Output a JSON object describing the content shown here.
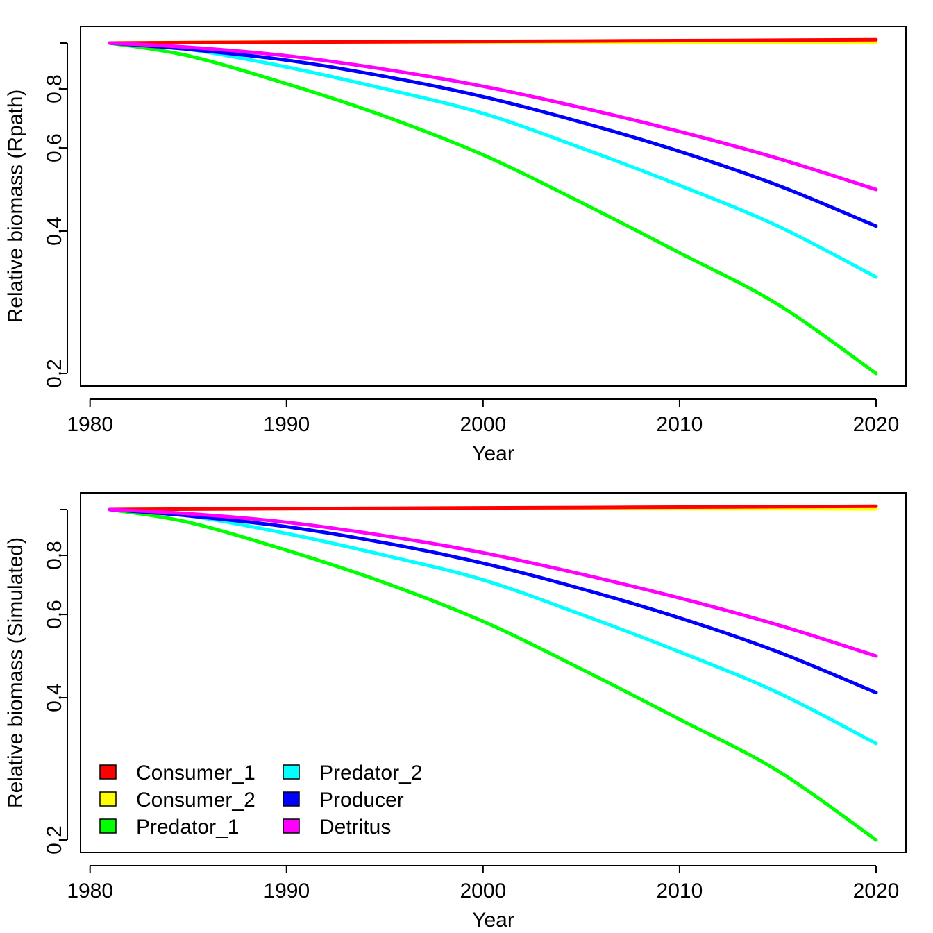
{
  "chart_data": [
    {
      "type": "line",
      "title": "",
      "xlabel": "Year",
      "ylabel": "Relative biomass (Rpath)",
      "xlim": [
        1981,
        2020
      ],
      "ylim": [
        0.2,
        1.0
      ],
      "y_scale": "log",
      "xticks": [
        1980,
        1990,
        2000,
        2010,
        2020
      ],
      "yticks": [
        0.2,
        0.4,
        0.6,
        0.8
      ],
      "grid": false,
      "legend": null,
      "x": [
        1981,
        1985,
        1990,
        1995,
        2000,
        2005,
        2010,
        2015,
        2020
      ],
      "series": [
        {
          "color": "#ff0000",
          "values": [
            1.0,
            1.002,
            1.004,
            1.006,
            1.008,
            1.01,
            1.012,
            1.014,
            1.016
          ]
        },
        {
          "color": "#ffff00",
          "values": [
            1.0,
            1.003,
            1.005,
            1.005,
            1.005,
            1.005,
            1.004,
            1.004,
            1.003
          ]
        },
        {
          "color": "#00ff00",
          "values": [
            1.0,
            0.94,
            0.82,
            0.7,
            0.58,
            0.46,
            0.36,
            0.28,
            0.2
          ]
        },
        {
          "color": "#00ffff",
          "values": [
            1.0,
            0.97,
            0.89,
            0.8,
            0.71,
            0.6,
            0.5,
            0.41,
            0.32
          ]
        },
        {
          "color": "#0000ff",
          "values": [
            1.0,
            0.97,
            0.92,
            0.85,
            0.77,
            0.68,
            0.59,
            0.5,
            0.41
          ]
        },
        {
          "color": "#ff00ff",
          "values": [
            1.0,
            0.98,
            0.94,
            0.88,
            0.81,
            0.73,
            0.65,
            0.57,
            0.49
          ]
        }
      ]
    },
    {
      "type": "line",
      "title": "",
      "xlabel": "Year",
      "ylabel": "Relative biomass (Simulated)",
      "xlim": [
        1981,
        2020
      ],
      "ylim": [
        0.2,
        1.0
      ],
      "y_scale": "log",
      "xticks": [
        1980,
        1990,
        2000,
        2010,
        2020
      ],
      "yticks": [
        0.2,
        0.4,
        0.6,
        0.8
      ],
      "grid": false,
      "legend": "bottom-left",
      "x": [
        1981,
        1985,
        1990,
        1995,
        2000,
        2005,
        2010,
        2015,
        2020
      ],
      "series": [
        {
          "name": "Consumer_1",
          "color": "#ff0000",
          "values": [
            1.0,
            1.002,
            1.004,
            1.006,
            1.008,
            1.01,
            1.012,
            1.014,
            1.016
          ]
        },
        {
          "name": "Consumer_2",
          "color": "#ffff00",
          "values": [
            1.0,
            1.003,
            1.005,
            1.005,
            1.005,
            1.005,
            1.004,
            1.004,
            1.003
          ]
        },
        {
          "name": "Predator_1",
          "color": "#00ff00",
          "values": [
            1.0,
            0.94,
            0.82,
            0.7,
            0.58,
            0.46,
            0.36,
            0.28,
            0.2
          ]
        },
        {
          "name": "Predator_2",
          "color": "#00ffff",
          "values": [
            1.0,
            0.97,
            0.89,
            0.8,
            0.71,
            0.6,
            0.5,
            0.41,
            0.32
          ]
        },
        {
          "name": "Producer",
          "color": "#0000ff",
          "values": [
            1.0,
            0.97,
            0.92,
            0.85,
            0.77,
            0.68,
            0.59,
            0.5,
            0.41
          ]
        },
        {
          "name": "Detritus",
          "color": "#ff00ff",
          "values": [
            1.0,
            0.98,
            0.94,
            0.88,
            0.81,
            0.73,
            0.65,
            0.57,
            0.49
          ]
        }
      ]
    }
  ]
}
